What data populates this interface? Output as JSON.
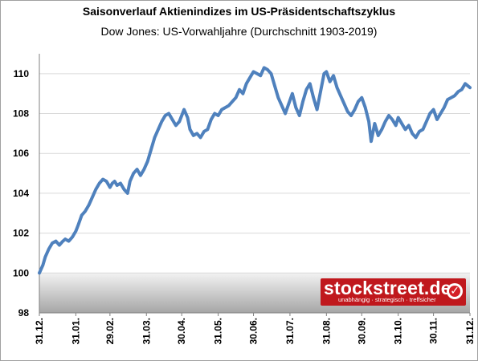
{
  "title": "Saisonverlauf Aktienindizes im US-Präsidentschaftszyklus",
  "subtitle": "Dow Jones: US-Vorwahljahre (Durchschnitt 1903-2019)",
  "logo": {
    "name": "stockstreet.de",
    "tagline": "unabhängig · strategisch · treffsicher",
    "badge": "✓"
  },
  "colors": {
    "line": "#4f81bd",
    "grid": "#d9d9d9",
    "logo_bg": "#c0181d"
  },
  "chart_data": {
    "type": "line",
    "title": "Saisonverlauf Aktienindizes im US-Präsidentschaftszyklus",
    "subtitle": "Dow Jones: US-Vorwahljahre (Durchschnitt 1903-2019)",
    "ylim": [
      98,
      111
    ],
    "yticks": [
      98,
      100,
      102,
      104,
      106,
      108,
      110
    ],
    "grid": true,
    "shaded_below": 100,
    "x_tick_labels": [
      "31.12.",
      "31.01.",
      "29.02.",
      "31.03.",
      "30.04.",
      "31.05.",
      "30.06.",
      "31.07.",
      "31.08.",
      "30.09.",
      "31.10.",
      "30.11.",
      "31.12."
    ],
    "x_days": [
      0,
      31,
      60,
      91,
      121,
      152,
      182,
      213,
      244,
      274,
      305,
      335,
      366
    ],
    "series": [
      {
        "x": [
          0,
          3,
          5,
          8,
          11,
          14,
          17,
          20,
          22,
          25,
          28,
          31,
          33,
          36,
          39,
          42,
          45,
          48,
          51,
          54,
          57,
          60,
          62,
          64,
          66,
          69,
          72,
          75,
          77,
          80,
          83,
          86,
          89,
          92,
          95,
          98,
          101,
          104,
          107,
          110,
          113,
          116,
          119,
          121,
          123,
          126,
          128,
          131,
          134,
          137,
          140,
          143,
          146,
          149,
          152,
          155,
          158,
          161,
          164,
          167,
          170,
          173,
          176,
          179,
          182,
          185,
          188,
          191,
          194,
          197,
          200,
          203,
          206,
          209,
          212,
          215,
          218,
          221,
          224,
          227,
          230,
          233,
          236,
          239,
          242,
          244,
          247,
          250,
          253,
          256,
          259,
          262,
          265,
          268,
          271,
          274,
          277,
          280,
          282,
          285,
          288,
          291,
          294,
          297,
          300,
          303,
          305,
          308,
          311,
          314,
          317,
          320,
          323,
          326,
          329,
          332,
          335,
          338,
          341,
          344,
          347,
          350,
          353,
          356,
          359,
          362,
          366
        ],
        "values": [
          100.0,
          100.4,
          100.8,
          101.2,
          101.5,
          101.6,
          101.4,
          101.6,
          101.7,
          101.6,
          101.8,
          102.1,
          102.4,
          102.9,
          103.1,
          103.4,
          103.8,
          104.2,
          104.5,
          104.7,
          104.6,
          104.3,
          104.5,
          104.6,
          104.4,
          104.5,
          104.2,
          104.0,
          104.6,
          105.0,
          105.2,
          104.9,
          105.2,
          105.6,
          106.2,
          106.8,
          107.2,
          107.6,
          107.9,
          108.0,
          107.7,
          107.4,
          107.6,
          107.9,
          108.2,
          107.8,
          107.2,
          106.9,
          107.0,
          106.8,
          107.1,
          107.2,
          107.7,
          108.0,
          107.9,
          108.2,
          108.3,
          108.4,
          108.6,
          108.8,
          109.2,
          109.0,
          109.5,
          109.8,
          110.1,
          110.0,
          109.9,
          110.3,
          110.2,
          110.0,
          109.4,
          108.8,
          108.4,
          108.0,
          108.5,
          109.0,
          108.3,
          107.9,
          108.6,
          109.2,
          109.5,
          108.8,
          108.2,
          109.1,
          110.0,
          110.1,
          109.6,
          109.9,
          109.3,
          108.9,
          108.5,
          108.1,
          107.9,
          108.2,
          108.6,
          108.8,
          108.3,
          107.6,
          106.6,
          107.5,
          106.9,
          107.2,
          107.6,
          107.9,
          107.7,
          107.4,
          107.8,
          107.5,
          107.2,
          107.4,
          107.0,
          106.8,
          107.1,
          107.2,
          107.6,
          108.0,
          108.2,
          107.7,
          108.0,
          108.3,
          108.7,
          108.8,
          108.9,
          109.1,
          109.2,
          109.5,
          109.3
        ]
      }
    ]
  }
}
